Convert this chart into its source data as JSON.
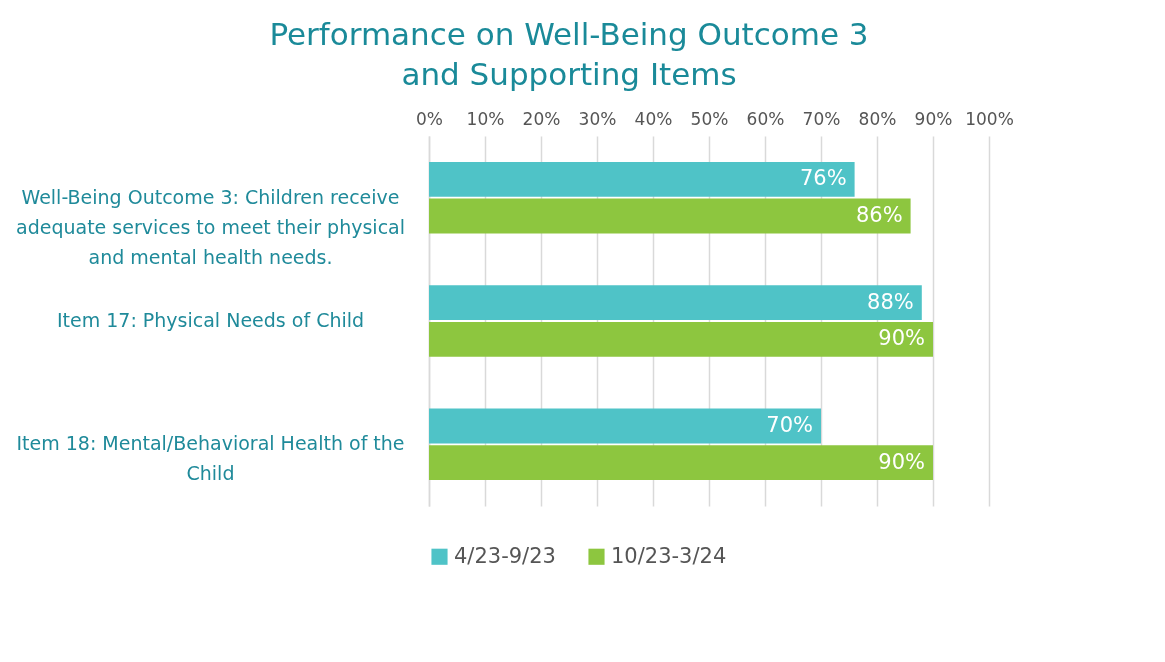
{
  "chart_data": {
    "type": "bar",
    "orientation": "horizontal",
    "title": "Performance on Well-Being Outcome 3 and Supporting Items",
    "categories": [
      "Well-Being Outcome 3: Children receive adequate services to meet their physical and mental health needs.",
      "Item 17: Physical Needs of Child",
      "Item 18: Mental/Behavioral Health of the Child"
    ],
    "series": [
      {
        "name": "4/23-9/23",
        "color": "#4fc3c7",
        "values": [
          76,
          88,
          70
        ],
        "value_labels": [
          "76%",
          "88%",
          "70%"
        ]
      },
      {
        "name": "10/23-3/24",
        "color": "#8dc63f",
        "values": [
          86,
          90,
          90
        ],
        "value_labels": [
          "86%",
          "90%",
          "90%"
        ]
      }
    ],
    "xlim": [
      0,
      100
    ],
    "xticks": [
      {
        "value": 0,
        "label": "0%"
      },
      {
        "value": 10,
        "label": "10%"
      },
      {
        "value": 20,
        "label": "20%"
      },
      {
        "value": 30,
        "label": "30%"
      },
      {
        "value": 40,
        "label": "40%"
      },
      {
        "value": 50,
        "label": "50%"
      },
      {
        "value": 60,
        "label": "60%"
      },
      {
        "value": 70,
        "label": "70%"
      },
      {
        "value": 80,
        "label": "80%"
      },
      {
        "value": 90,
        "label": "90%"
      },
      {
        "value": 100,
        "label": "100%"
      }
    ],
    "grid": "x",
    "legend": "bottom"
  }
}
